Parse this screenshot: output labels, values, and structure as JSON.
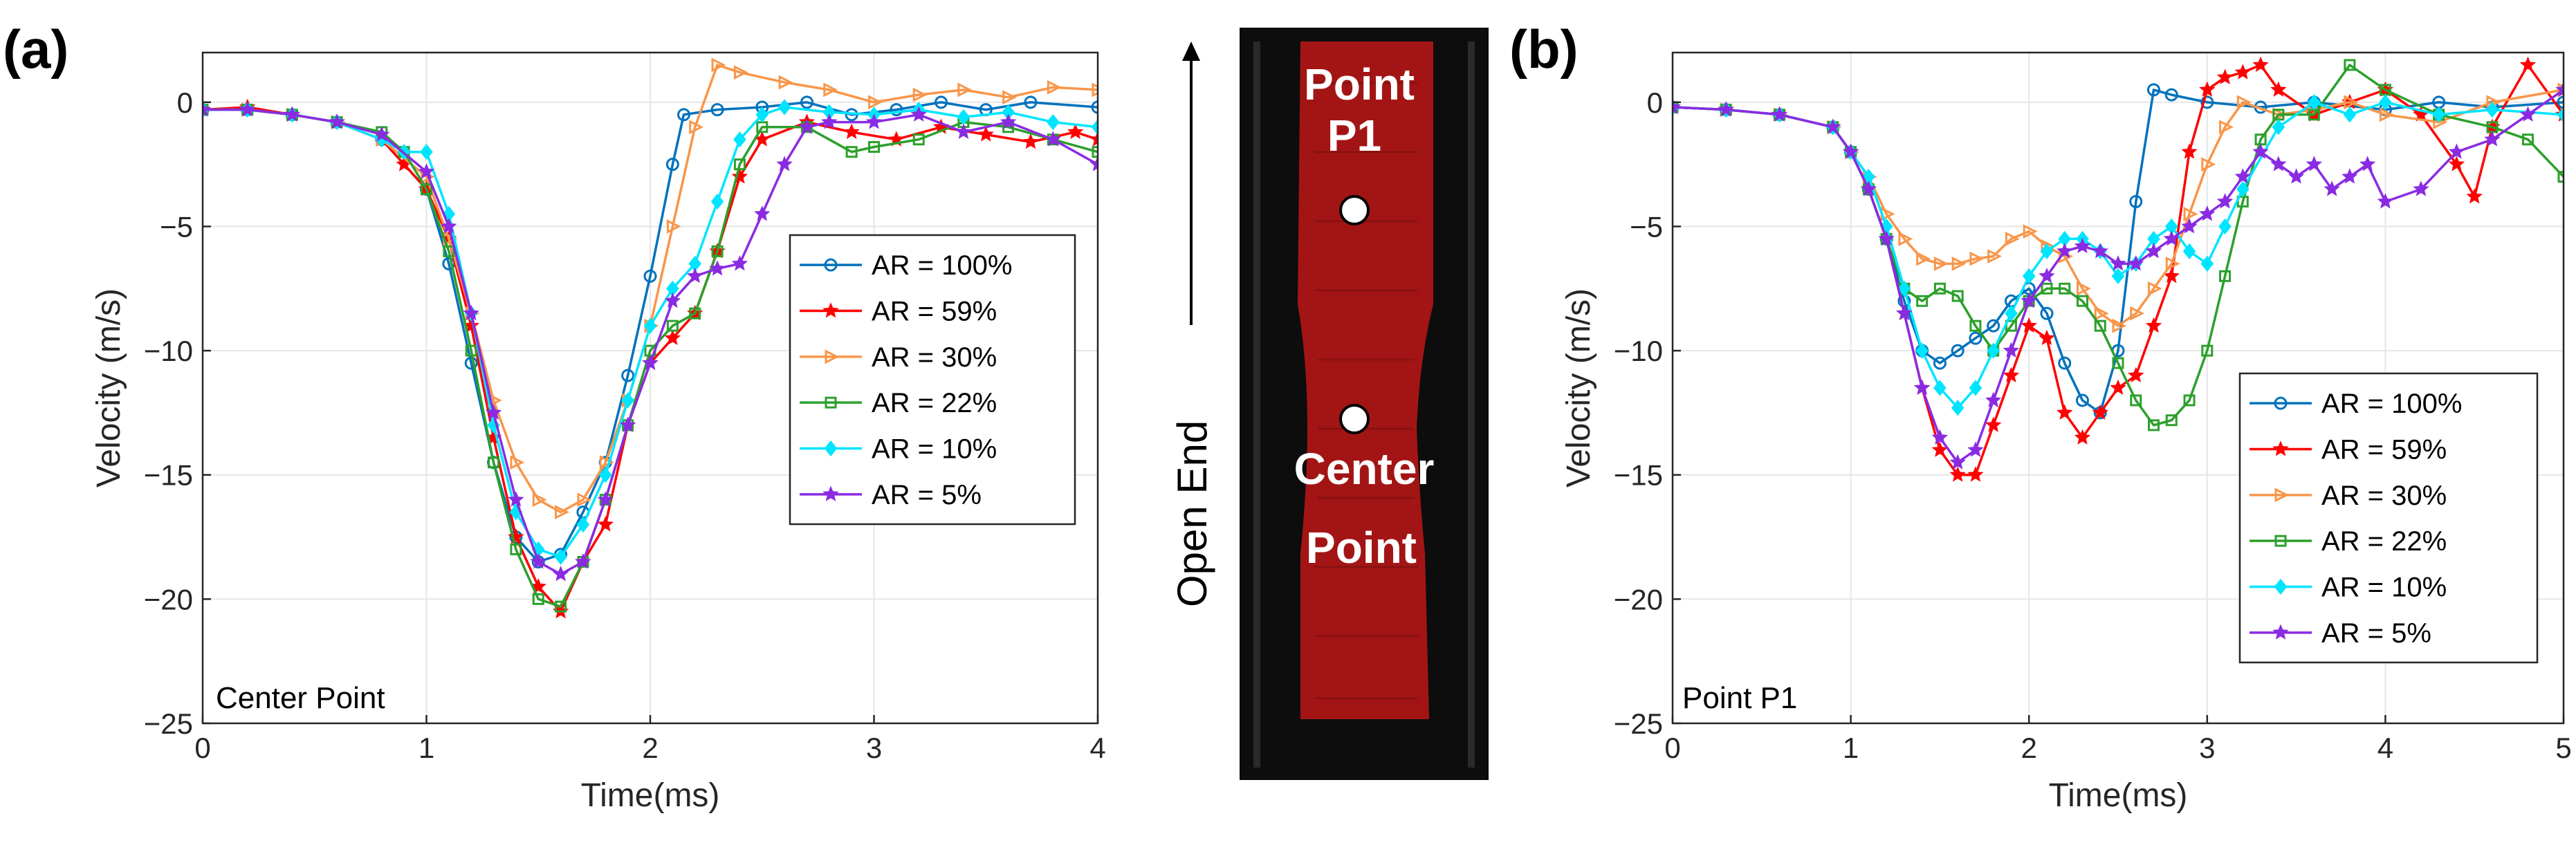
{
  "panel_labels": {
    "a": "(a)",
    "b": "(b)"
  },
  "middle_image": {
    "label_top_line1": "Point",
    "label_top_line2": "P1",
    "label_center_line1": "Center",
    "label_center_line2": "Point",
    "open_end_label": "Open End",
    "colors": {
      "background": "#0d0d0d",
      "region": "#a31515",
      "marker": "#ffffff"
    }
  },
  "chart_data": [
    {
      "type": "line",
      "panel": "(a)",
      "annotation": "Center Point",
      "xlabel": "Time(ms)",
      "ylabel": "Velocity (m/s)",
      "xlim": [
        0,
        4
      ],
      "ylim": [
        -25,
        2
      ],
      "xticks": [
        0,
        1,
        2,
        3,
        4
      ],
      "yticks": [
        0,
        -5,
        -10,
        -15,
        -20,
        -25
      ],
      "grid": true,
      "legend_position": "right-middle",
      "series": [
        {
          "name": "AR = 100%",
          "color": "#0072BD",
          "marker": "circle",
          "x": [
            0,
            0.2,
            0.4,
            0.6,
            0.8,
            1.0,
            1.1,
            1.2,
            1.3,
            1.4,
            1.5,
            1.6,
            1.7,
            1.8,
            1.9,
            2.0,
            2.1,
            2.15,
            2.3,
            2.5,
            2.7,
            2.9,
            3.1,
            3.3,
            3.5,
            3.7,
            4.0
          ],
          "y": [
            -0.3,
            -0.3,
            -0.5,
            -0.8,
            -1.5,
            -3.5,
            -6.5,
            -10.5,
            -14.5,
            -17.5,
            -18.5,
            -18.2,
            -16.5,
            -14.5,
            -11.0,
            -7.0,
            -2.5,
            -0.5,
            -0.3,
            -0.2,
            0.0,
            -0.5,
            -0.3,
            0.0,
            -0.3,
            0.0,
            -0.2
          ]
        },
        {
          "name": "AR = 59%",
          "color": "#FF0000",
          "marker": "star",
          "x": [
            0,
            0.2,
            0.4,
            0.6,
            0.8,
            0.9,
            1.0,
            1.1,
            1.2,
            1.3,
            1.4,
            1.5,
            1.6,
            1.7,
            1.8,
            1.9,
            2.0,
            2.1,
            2.2,
            2.3,
            2.4,
            2.5,
            2.7,
            2.9,
            3.1,
            3.3,
            3.5,
            3.7,
            3.9,
            4.0
          ],
          "y": [
            -0.3,
            -0.2,
            -0.5,
            -0.8,
            -1.5,
            -2.5,
            -3.5,
            -5.5,
            -9.0,
            -13.5,
            -17.5,
            -19.5,
            -20.5,
            -18.5,
            -17.0,
            -13.0,
            -10.5,
            -9.5,
            -8.5,
            -6.0,
            -3.0,
            -1.5,
            -0.8,
            -1.2,
            -1.5,
            -1.0,
            -1.3,
            -1.6,
            -1.2,
            -1.5
          ]
        },
        {
          "name": "AR = 30%",
          "color": "#F8964A",
          "marker": "triangle-right",
          "x": [
            0,
            0.2,
            0.4,
            0.6,
            0.8,
            1.0,
            1.1,
            1.2,
            1.3,
            1.4,
            1.5,
            1.6,
            1.7,
            1.8,
            1.9,
            2.0,
            2.1,
            2.2,
            2.3,
            2.4,
            2.6,
            2.8,
            3.0,
            3.2,
            3.4,
            3.6,
            3.8,
            4.0
          ],
          "y": [
            -0.3,
            -0.3,
            -0.5,
            -0.8,
            -1.5,
            -3.0,
            -5.5,
            -8.5,
            -12.0,
            -14.5,
            -16.0,
            -16.5,
            -16.0,
            -14.5,
            -12.0,
            -9.0,
            -5.0,
            -1.0,
            1.5,
            1.2,
            0.8,
            0.5,
            0.0,
            0.3,
            0.5,
            0.2,
            0.6,
            0.5
          ]
        },
        {
          "name": "AR = 22%",
          "color": "#2CA02C",
          "marker": "square",
          "x": [
            0,
            0.2,
            0.4,
            0.6,
            0.8,
            0.9,
            1.0,
            1.1,
            1.2,
            1.3,
            1.4,
            1.5,
            1.6,
            1.7,
            1.8,
            1.9,
            2.0,
            2.1,
            2.2,
            2.3,
            2.4,
            2.5,
            2.7,
            2.9,
            3.0,
            3.2,
            3.4,
            3.6,
            3.8,
            4.0
          ],
          "y": [
            -0.3,
            -0.3,
            -0.5,
            -0.8,
            -1.2,
            -2.0,
            -3.5,
            -6.0,
            -10.0,
            -14.5,
            -18.0,
            -20.0,
            -20.3,
            -18.5,
            -16.0,
            -13.0,
            -10.0,
            -9.0,
            -8.5,
            -6.0,
            -2.5,
            -1.0,
            -1.0,
            -2.0,
            -1.8,
            -1.5,
            -0.8,
            -1.0,
            -1.5,
            -2.0
          ]
        },
        {
          "name": "AR = 10%",
          "color": "#00E5FF",
          "marker": "diamond",
          "x": [
            0,
            0.2,
            0.4,
            0.6,
            0.8,
            0.9,
            1.0,
            1.1,
            1.2,
            1.3,
            1.4,
            1.5,
            1.6,
            1.7,
            1.8,
            1.9,
            2.0,
            2.1,
            2.2,
            2.3,
            2.4,
            2.5,
            2.6,
            2.8,
            3.0,
            3.2,
            3.4,
            3.6,
            3.8,
            4.0
          ],
          "y": [
            -0.3,
            -0.3,
            -0.5,
            -0.8,
            -1.5,
            -2.0,
            -2.0,
            -4.5,
            -8.5,
            -13.0,
            -16.5,
            -18.0,
            -18.3,
            -17.0,
            -15.0,
            -12.0,
            -9.0,
            -7.5,
            -6.5,
            -4.0,
            -1.5,
            -0.5,
            -0.2,
            -0.4,
            -0.5,
            -0.3,
            -0.6,
            -0.4,
            -0.8,
            -1.0
          ]
        },
        {
          "name": "AR = 5%",
          "color": "#8A2BE2",
          "marker": "star",
          "x": [
            0,
            0.2,
            0.4,
            0.6,
            0.8,
            1.0,
            1.1,
            1.2,
            1.3,
            1.4,
            1.5,
            1.6,
            1.7,
            1.8,
            1.9,
            2.0,
            2.1,
            2.2,
            2.3,
            2.4,
            2.5,
            2.6,
            2.7,
            2.8,
            3.0,
            3.2,
            3.4,
            3.6,
            3.8,
            4.0
          ],
          "y": [
            -0.3,
            -0.3,
            -0.5,
            -0.8,
            -1.3,
            -2.8,
            -5.0,
            -8.5,
            -12.5,
            -16.0,
            -18.5,
            -19.0,
            -18.5,
            -16.0,
            -13.0,
            -10.5,
            -8.0,
            -7.0,
            -6.7,
            -6.5,
            -4.5,
            -2.5,
            -1.0,
            -0.8,
            -0.8,
            -0.5,
            -1.2,
            -0.8,
            -1.5,
            -2.5
          ]
        }
      ]
    },
    {
      "type": "line",
      "panel": "(b)",
      "annotation": "Point P1",
      "xlabel": "Time(ms)",
      "ylabel": "Velocity (m/s)",
      "xlim": [
        0,
        5
      ],
      "ylim": [
        -25,
        2
      ],
      "xticks": [
        0,
        1,
        2,
        3,
        4,
        5
      ],
      "yticks": [
        0,
        -5,
        -10,
        -15,
        -20,
        -25
      ],
      "grid": true,
      "legend_position": "bottom-right",
      "series": [
        {
          "name": "AR = 100%",
          "color": "#0072BD",
          "marker": "circle",
          "x": [
            0,
            0.3,
            0.6,
            0.9,
            1.0,
            1.1,
            1.2,
            1.3,
            1.4,
            1.5,
            1.6,
            1.7,
            1.8,
            1.9,
            2.0,
            2.1,
            2.2,
            2.3,
            2.4,
            2.5,
            2.6,
            2.7,
            2.8,
            3.0,
            3.3,
            3.6,
            4.0,
            4.3,
            4.6,
            5.0
          ],
          "y": [
            -0.2,
            -0.3,
            -0.5,
            -1.0,
            -2.0,
            -3.5,
            -5.5,
            -8.0,
            -10.0,
            -10.5,
            -10.0,
            -9.5,
            -9.0,
            -8.0,
            -7.5,
            -8.5,
            -10.5,
            -12.0,
            -12.5,
            -10.0,
            -4.0,
            0.5,
            0.3,
            0.0,
            -0.2,
            0.0,
            -0.3,
            0.0,
            -0.2,
            0.0
          ]
        },
        {
          "name": "AR = 59%",
          "color": "#FF0000",
          "marker": "star",
          "x": [
            0,
            0.3,
            0.6,
            0.9,
            1.0,
            1.1,
            1.2,
            1.3,
            1.4,
            1.5,
            1.6,
            1.7,
            1.8,
            1.9,
            2.0,
            2.1,
            2.2,
            2.3,
            2.4,
            2.5,
            2.6,
            2.7,
            2.8,
            2.9,
            3.0,
            3.1,
            3.2,
            3.3,
            3.4,
            3.6,
            3.8,
            4.0,
            4.2,
            4.4,
            4.5,
            4.6,
            4.8,
            5.0
          ],
          "y": [
            -0.2,
            -0.3,
            -0.5,
            -1.0,
            -2.0,
            -3.5,
            -5.5,
            -8.5,
            -11.5,
            -14.0,
            -15.0,
            -15.0,
            -13.0,
            -11.0,
            -9.0,
            -9.5,
            -12.5,
            -13.5,
            -12.5,
            -11.5,
            -11.0,
            -9.0,
            -7.0,
            -2.0,
            0.5,
            1.0,
            1.2,
            1.5,
            0.5,
            -0.5,
            0.0,
            0.5,
            -0.5,
            -2.5,
            -3.8,
            -1.0,
            1.5,
            -0.5
          ]
        },
        {
          "name": "AR = 30%",
          "color": "#F8964A",
          "marker": "triangle-right",
          "x": [
            0,
            0.3,
            0.6,
            0.9,
            1.0,
            1.1,
            1.2,
            1.3,
            1.4,
            1.5,
            1.6,
            1.7,
            1.8,
            1.9,
            2.0,
            2.1,
            2.2,
            2.3,
            2.4,
            2.5,
            2.6,
            2.7,
            2.8,
            2.9,
            3.0,
            3.1,
            3.2,
            3.4,
            3.6,
            3.8,
            4.0,
            4.3,
            4.6,
            5.0
          ],
          "y": [
            -0.2,
            -0.3,
            -0.5,
            -1.0,
            -2.0,
            -3.0,
            -4.5,
            -5.5,
            -6.3,
            -6.5,
            -6.5,
            -6.3,
            -6.2,
            -5.5,
            -5.2,
            -5.8,
            -6.2,
            -7.5,
            -8.5,
            -9.0,
            -8.5,
            -7.5,
            -6.5,
            -4.5,
            -2.5,
            -1.0,
            0.0,
            -0.5,
            -0.3,
            0.0,
            -0.5,
            -0.8,
            0.0,
            0.5
          ]
        },
        {
          "name": "AR = 22%",
          "color": "#2CA02C",
          "marker": "square",
          "x": [
            0,
            0.3,
            0.6,
            0.9,
            1.0,
            1.1,
            1.2,
            1.3,
            1.4,
            1.5,
            1.6,
            1.7,
            1.8,
            1.9,
            2.0,
            2.1,
            2.2,
            2.3,
            2.4,
            2.5,
            2.6,
            2.7,
            2.8,
            2.9,
            3.0,
            3.1,
            3.2,
            3.3,
            3.4,
            3.6,
            3.8,
            4.0,
            4.3,
            4.6,
            4.8,
            5.0
          ],
          "y": [
            -0.2,
            -0.3,
            -0.5,
            -1.0,
            -2.0,
            -3.5,
            -5.5,
            -7.5,
            -8.0,
            -7.5,
            -7.8,
            -9.0,
            -10.0,
            -9.0,
            -8.0,
            -7.5,
            -7.5,
            -8.0,
            -9.0,
            -10.5,
            -12.0,
            -13.0,
            -12.8,
            -12.0,
            -10.0,
            -7.0,
            -4.0,
            -1.5,
            -0.5,
            -0.5,
            1.5,
            0.5,
            -0.5,
            -1.0,
            -1.5,
            -3.0
          ]
        },
        {
          "name": "AR = 10%",
          "color": "#00E5FF",
          "marker": "diamond",
          "x": [
            0,
            0.3,
            0.6,
            0.9,
            1.0,
            1.1,
            1.2,
            1.3,
            1.4,
            1.5,
            1.6,
            1.7,
            1.8,
            1.9,
            2.0,
            2.1,
            2.2,
            2.3,
            2.4,
            2.5,
            2.6,
            2.7,
            2.8,
            2.9,
            3.0,
            3.1,
            3.2,
            3.4,
            3.6,
            3.8,
            4.0,
            4.3,
            4.6,
            5.0
          ],
          "y": [
            -0.2,
            -0.3,
            -0.5,
            -1.0,
            -2.0,
            -3.0,
            -5.0,
            -7.5,
            -10.0,
            -11.5,
            -12.3,
            -11.5,
            -10.0,
            -8.5,
            -7.0,
            -6.0,
            -5.5,
            -5.5,
            -6.0,
            -7.0,
            -6.5,
            -5.5,
            -5.0,
            -6.0,
            -6.5,
            -5.0,
            -3.5,
            -1.0,
            0.0,
            -0.5,
            0.0,
            -0.5,
            -0.3,
            -0.5
          ]
        },
        {
          "name": "AR = 5%",
          "color": "#8A2BE2",
          "marker": "star",
          "x": [
            0,
            0.3,
            0.6,
            0.9,
            1.0,
            1.1,
            1.2,
            1.3,
            1.4,
            1.5,
            1.6,
            1.7,
            1.8,
            1.9,
            2.0,
            2.1,
            2.2,
            2.3,
            2.4,
            2.5,
            2.6,
            2.7,
            2.8,
            2.9,
            3.0,
            3.1,
            3.2,
            3.3,
            3.4,
            3.5,
            3.6,
            3.7,
            3.8,
            3.9,
            4.0,
            4.2,
            4.4,
            4.6,
            4.8,
            5.0
          ],
          "y": [
            -0.2,
            -0.3,
            -0.5,
            -1.0,
            -2.0,
            -3.5,
            -5.5,
            -8.5,
            -11.5,
            -13.5,
            -14.5,
            -14.0,
            -12.0,
            -10.0,
            -8.0,
            -7.0,
            -6.0,
            -5.8,
            -6.0,
            -6.5,
            -6.5,
            -6.0,
            -5.5,
            -5.0,
            -4.5,
            -4.0,
            -3.0,
            -2.0,
            -2.5,
            -3.0,
            -2.5,
            -3.5,
            -3.0,
            -2.5,
            -4.0,
            -3.5,
            -2.0,
            -1.5,
            -0.5,
            0.5
          ]
        }
      ]
    }
  ]
}
